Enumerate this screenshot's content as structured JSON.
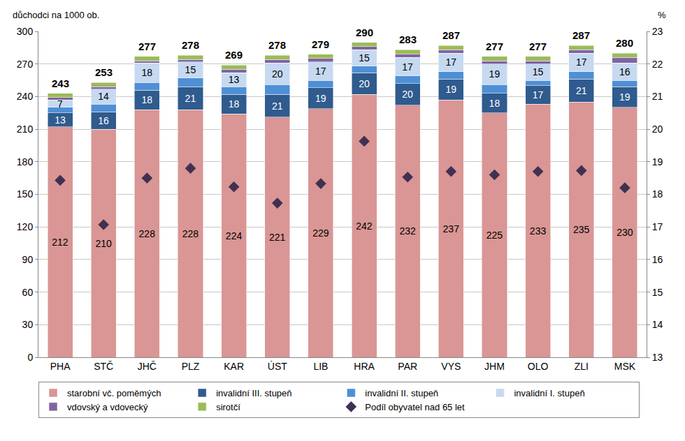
{
  "chart_data": {
    "type": "bar",
    "stacked": true,
    "grid": true,
    "legend": "bottom",
    "ylabel": "důchodci na 1000 ob.",
    "y2label": "%",
    "categories": [
      "PHA",
      "STČ",
      "JHČ",
      "PLZ",
      "KAR",
      "ÚST",
      "LIB",
      "HRA",
      "PAR",
      "VYS",
      "JHM",
      "OLO",
      "ZLI",
      "MSK"
    ],
    "ylim": [
      0,
      300
    ],
    "yticks": [
      0,
      30,
      60,
      90,
      120,
      150,
      180,
      210,
      240,
      270,
      300
    ],
    "y2lim": [
      13,
      23
    ],
    "y2ticks": [
      13,
      14,
      15,
      16,
      17,
      18,
      19,
      20,
      21,
      22,
      23
    ],
    "totals": [
      243,
      253,
      277,
      278,
      269,
      278,
      279,
      290,
      283,
      287,
      277,
      277,
      287,
      280
    ],
    "series": [
      {
        "name": "starobní vč. poměmých",
        "color": "#d99694",
        "data_labels": true,
        "values": [
          212,
          210,
          228,
          228,
          224,
          221,
          229,
          242,
          232,
          237,
          225,
          233,
          235,
          230
        ]
      },
      {
        "name": "invalidní III. stupeň",
        "color": "#2f5b8e",
        "data_labels": true,
        "values": [
          13,
          16,
          18,
          21,
          18,
          21,
          19,
          20,
          20,
          19,
          18,
          17,
          21,
          19
        ]
      },
      {
        "name": "invalidní II. stupeň",
        "color": "#4f8fd6",
        "data_labels": false,
        "values": [
          5,
          7,
          7,
          8,
          7,
          9,
          7,
          6,
          7,
          7,
          8,
          5,
          7,
          6
        ]
      },
      {
        "name": "invalidní I. stupeň",
        "color": "#c6d9f1",
        "data_labels": true,
        "values": [
          7,
          14,
          18,
          15,
          13,
          20,
          17,
          15,
          17,
          17,
          19,
          15,
          17,
          16
        ]
      },
      {
        "name": "vdovský a vdovecký",
        "color": "#8064a2",
        "data_labels": false,
        "values": [
          2,
          2,
          2,
          2,
          3,
          3,
          3,
          3,
          3,
          3,
          3,
          3,
          3,
          5
        ]
      },
      {
        "name": "sirotčí",
        "color": "#9bbb59",
        "data_labels": false,
        "values": [
          4,
          4,
          4,
          4,
          4,
          4,
          4,
          4,
          4,
          4,
          4,
          4,
          4,
          4
        ]
      },
      {
        "name": "Podíl obyvatel nad 65 let",
        "type": "scatter",
        "marker": "diamond",
        "axis": "y2",
        "color": "#403152",
        "values": [
          18.43,
          17.07,
          18.5,
          18.8,
          18.23,
          17.73,
          18.33,
          19.63,
          18.53,
          18.7,
          18.6,
          18.7,
          18.73,
          18.2
        ]
      }
    ]
  }
}
